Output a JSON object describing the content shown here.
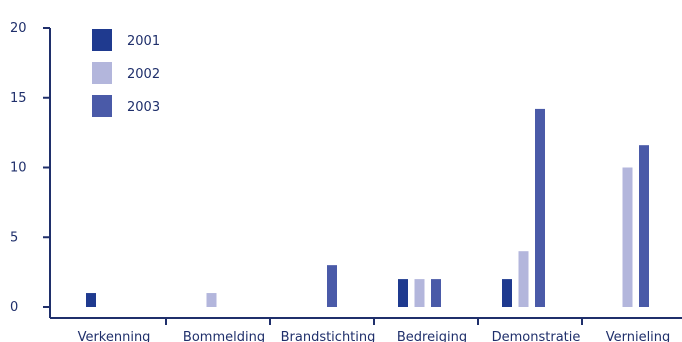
{
  "chart_data": {
    "type": "bar",
    "categories": [
      "Verkenning",
      "Bommelding",
      "Brandstichting",
      "Bedreiging",
      "Demonstratie",
      "Vernieling"
    ],
    "series": [
      {
        "name": "2001",
        "color": "#1f3a8f",
        "values": [
          1,
          0,
          0,
          2,
          2,
          0
        ]
      },
      {
        "name": "2002",
        "color": "#b3b6dc",
        "values": [
          0,
          1,
          0,
          2,
          4,
          10
        ]
      },
      {
        "name": "2003",
        "color": "#4a5aa8",
        "values": [
          0,
          0,
          3,
          2,
          14.2,
          11.6
        ]
      }
    ],
    "y_ticks": [
      "0",
      "5",
      "10",
      "15",
      "20"
    ],
    "ylim": [
      0,
      20
    ],
    "axis_color": "#1f2f6b",
    "grid": false,
    "legend_position": "top-left"
  }
}
